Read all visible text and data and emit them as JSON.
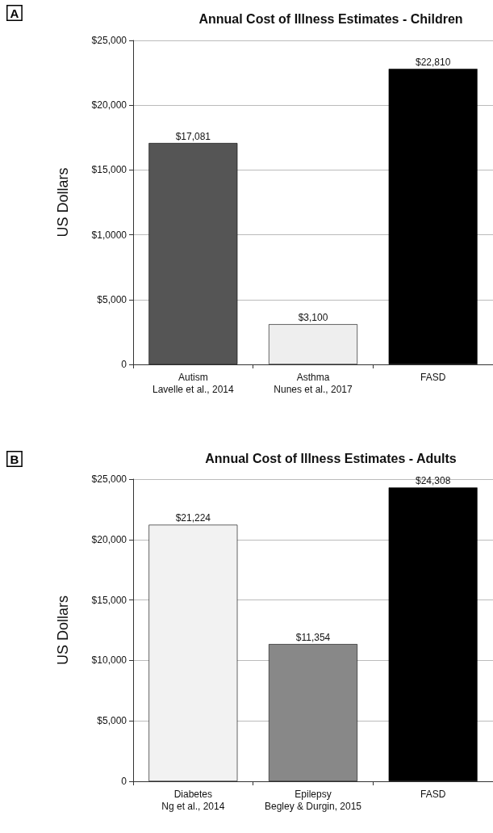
{
  "chart_data": [
    {
      "type": "bar",
      "title": "Annual Cost of Illness Estimates - Children",
      "ylabel": "US Dollars",
      "annotations": [
        "A"
      ],
      "categories": [
        "Autism\nLavelle et al., 2014",
        "Asthma\nNunes et al., 2017",
        "FASD"
      ],
      "values": [
        17081,
        3100,
        22810
      ],
      "colors": [
        "#555555",
        "#eeeeee",
        "#000000"
      ],
      "value_labels": [
        "$17,081",
        "$3,100",
        "$22,810"
      ],
      "ylim": [
        0,
        25000
      ],
      "yticks": [
        {
          "value": 0,
          "label": "0"
        },
        {
          "value": 5000,
          "label": "$5,000"
        },
        {
          "value": 10000,
          "label": "$1,0000"
        },
        {
          "value": 15000,
          "label": "$15,000"
        },
        {
          "value": 20000,
          "label": "$20,000"
        },
        {
          "value": 25000,
          "label": "$25,000"
        }
      ],
      "grid": "y"
    },
    {
      "type": "bar",
      "title": "Annual Cost of Illness Estimates - Adults",
      "ylabel": "US Dollars",
      "annotations": [
        "B"
      ],
      "categories": [
        "Diabetes\nNg et al., 2014",
        "Epilepsy\nBegley & Durgin, 2015",
        "FASD"
      ],
      "values": [
        21224,
        11354,
        24308
      ],
      "colors": [
        "#f2f2f2",
        "#888888",
        "#000000"
      ],
      "value_labels": [
        "$21,224",
        "$11,354",
        "$24,308"
      ],
      "ylim": [
        0,
        25000
      ],
      "yticks": [
        {
          "value": 0,
          "label": "0"
        },
        {
          "value": 5000,
          "label": "$5,000"
        },
        {
          "value": 10000,
          "label": "$10,000"
        },
        {
          "value": 15000,
          "label": "$15,000"
        },
        {
          "value": 20000,
          "label": "$20,000"
        },
        {
          "value": 25000,
          "label": "$25,000"
        }
      ],
      "grid": "y"
    }
  ]
}
